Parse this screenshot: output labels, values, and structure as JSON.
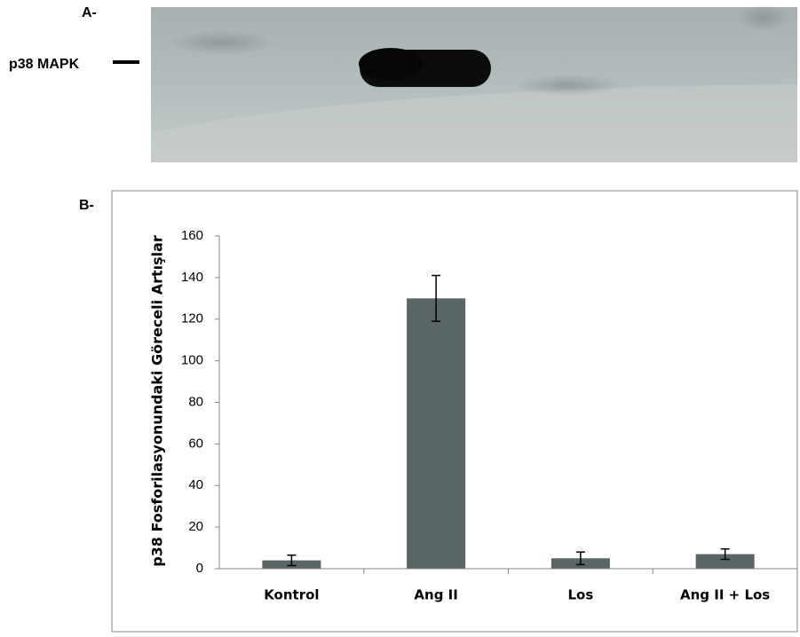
{
  "panel_a_label": "A-",
  "blot_label": "p38 MAPK",
  "panel_b_label": "B-",
  "chart_data": {
    "type": "bar",
    "y_label": "p38 Fosforilasyonundaki Göreceli Artışlar",
    "categories": [
      "Kontrol",
      "Ang II",
      "Los",
      "Ang II + Los"
    ],
    "values": [
      4,
      130,
      5,
      7
    ],
    "errors": [
      2.5,
      11,
      3,
      2.5
    ],
    "color": "#5a6566",
    "ylim": [
      0,
      160
    ],
    "yticks": [
      0,
      20,
      40,
      60,
      80,
      100,
      120,
      140,
      160
    ],
    "grid": false
  }
}
